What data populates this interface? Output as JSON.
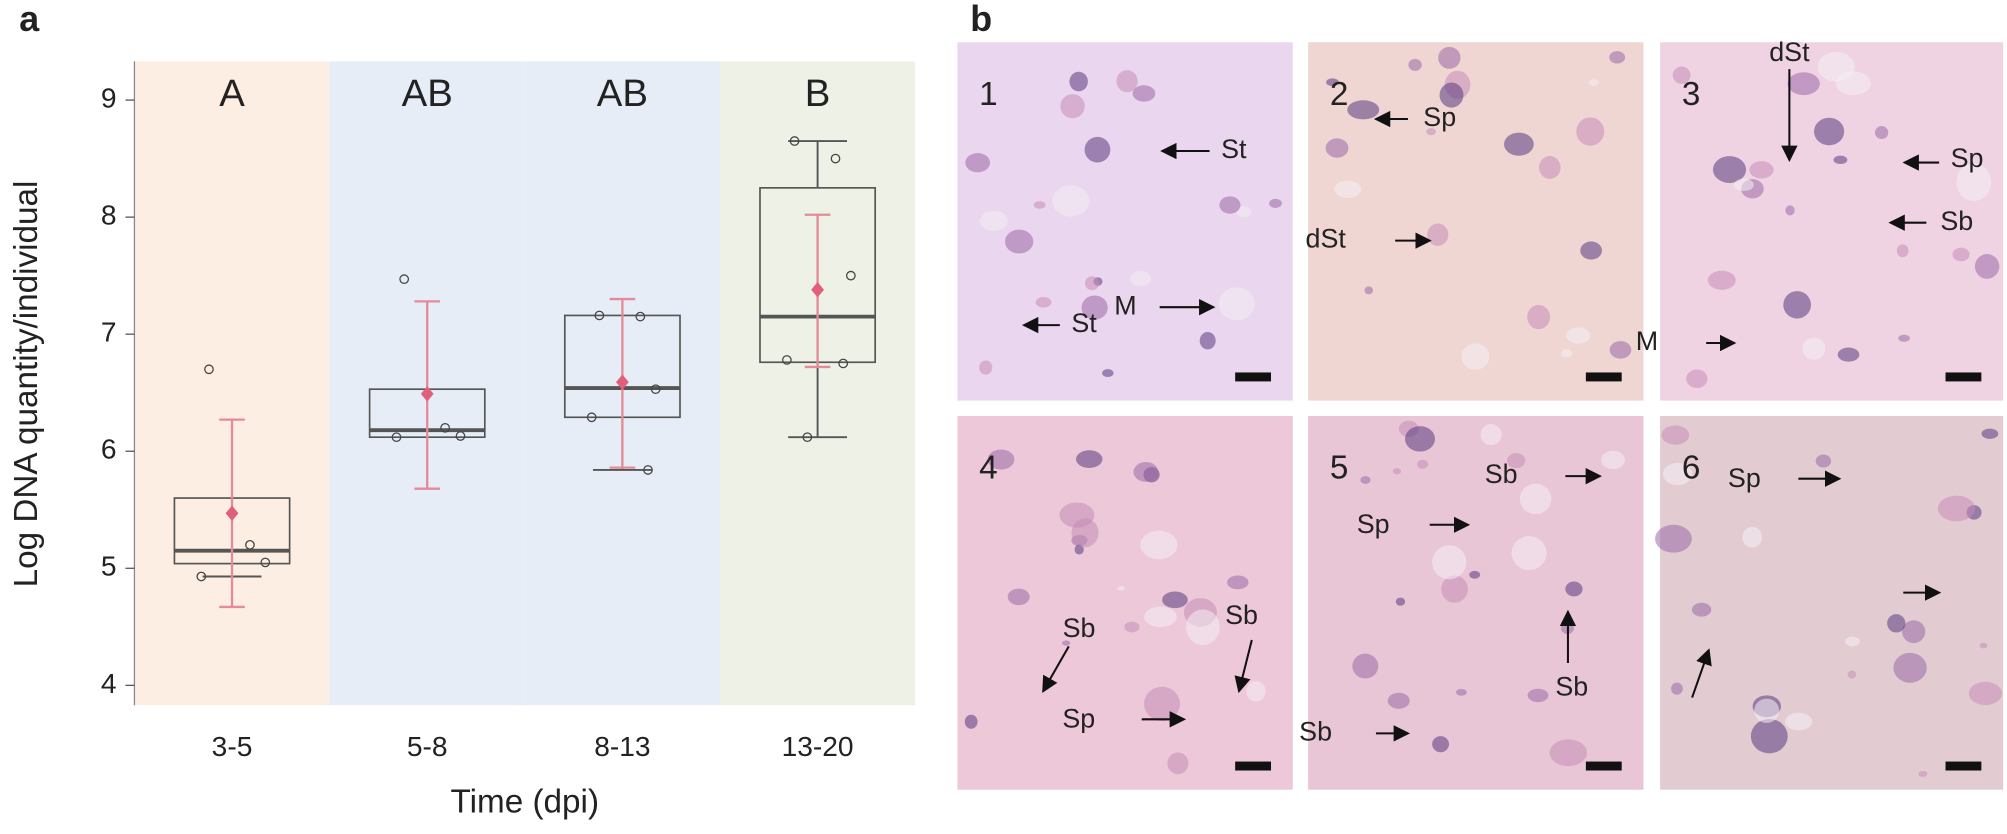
{
  "chart_data": {
    "type": "box",
    "panel_label": "a",
    "y_label": "Log DNA quantity/individual",
    "x_label": "Time (dpi)",
    "categories": [
      "3-5",
      "5-8",
      "8-13",
      "13-20"
    ],
    "letters": [
      "A",
      "AB",
      "AB",
      "B"
    ],
    "band_colors": [
      "#fdeee4",
      "#e6edf6",
      "#e6edf6",
      "#edf1e6"
    ],
    "ylim": [
      3.83,
      9.33
    ],
    "yticks": [
      4,
      5,
      6,
      7,
      8,
      9
    ],
    "box_color": "#555555",
    "mean_color": "#e0607a",
    "error_color": "#e58a98",
    "boxes": [
      {
        "q1": 5.04,
        "median": 5.15,
        "q3": 5.6,
        "whisker_low": 4.93,
        "whisker_high": null,
        "points": [
          6.7,
          5.2,
          5.05,
          4.93
        ],
        "mean": 5.47,
        "error_low": 4.67,
        "error_high": 6.27
      },
      {
        "q1": 6.12,
        "median": 6.18,
        "q3": 6.53,
        "whisker_low": null,
        "whisker_high": null,
        "points": [
          7.47,
          6.2,
          6.13,
          6.12
        ],
        "mean": 6.49,
        "error_low": 5.68,
        "error_high": 7.28
      },
      {
        "q1": 6.29,
        "median": 6.54,
        "q3": 7.16,
        "whisker_low": 5.84,
        "whisker_high": null,
        "points": [
          7.16,
          7.15,
          6.53,
          6.29,
          5.84
        ],
        "mean": 6.59,
        "error_low": 5.86,
        "error_high": 7.3
      },
      {
        "q1": 6.76,
        "median": 7.15,
        "q3": 8.25,
        "whisker_low": 6.12,
        "whisker_high": 8.65,
        "points": [
          8.65,
          8.5,
          7.5,
          6.78,
          6.75,
          6.12
        ],
        "mean": 7.38,
        "error_low": 6.72,
        "error_high": 8.02
      }
    ]
  },
  "micrographs": {
    "panel_label": "b",
    "tiles": [
      {
        "number": "1",
        "labels": [
          "St",
          "St",
          "M"
        ]
      },
      {
        "number": "2",
        "labels": [
          "Sp",
          "dSt"
        ]
      },
      {
        "number": "3",
        "labels": [
          "dSt",
          "Sp",
          "Sb",
          "M"
        ]
      },
      {
        "number": "4",
        "labels": [
          "Sb",
          "Sb",
          "Sp"
        ]
      },
      {
        "number": "5",
        "labels": [
          "Sb",
          "Sp",
          "Sb",
          "Sb"
        ]
      },
      {
        "number": "6",
        "labels": [
          "Sp"
        ]
      }
    ]
  }
}
